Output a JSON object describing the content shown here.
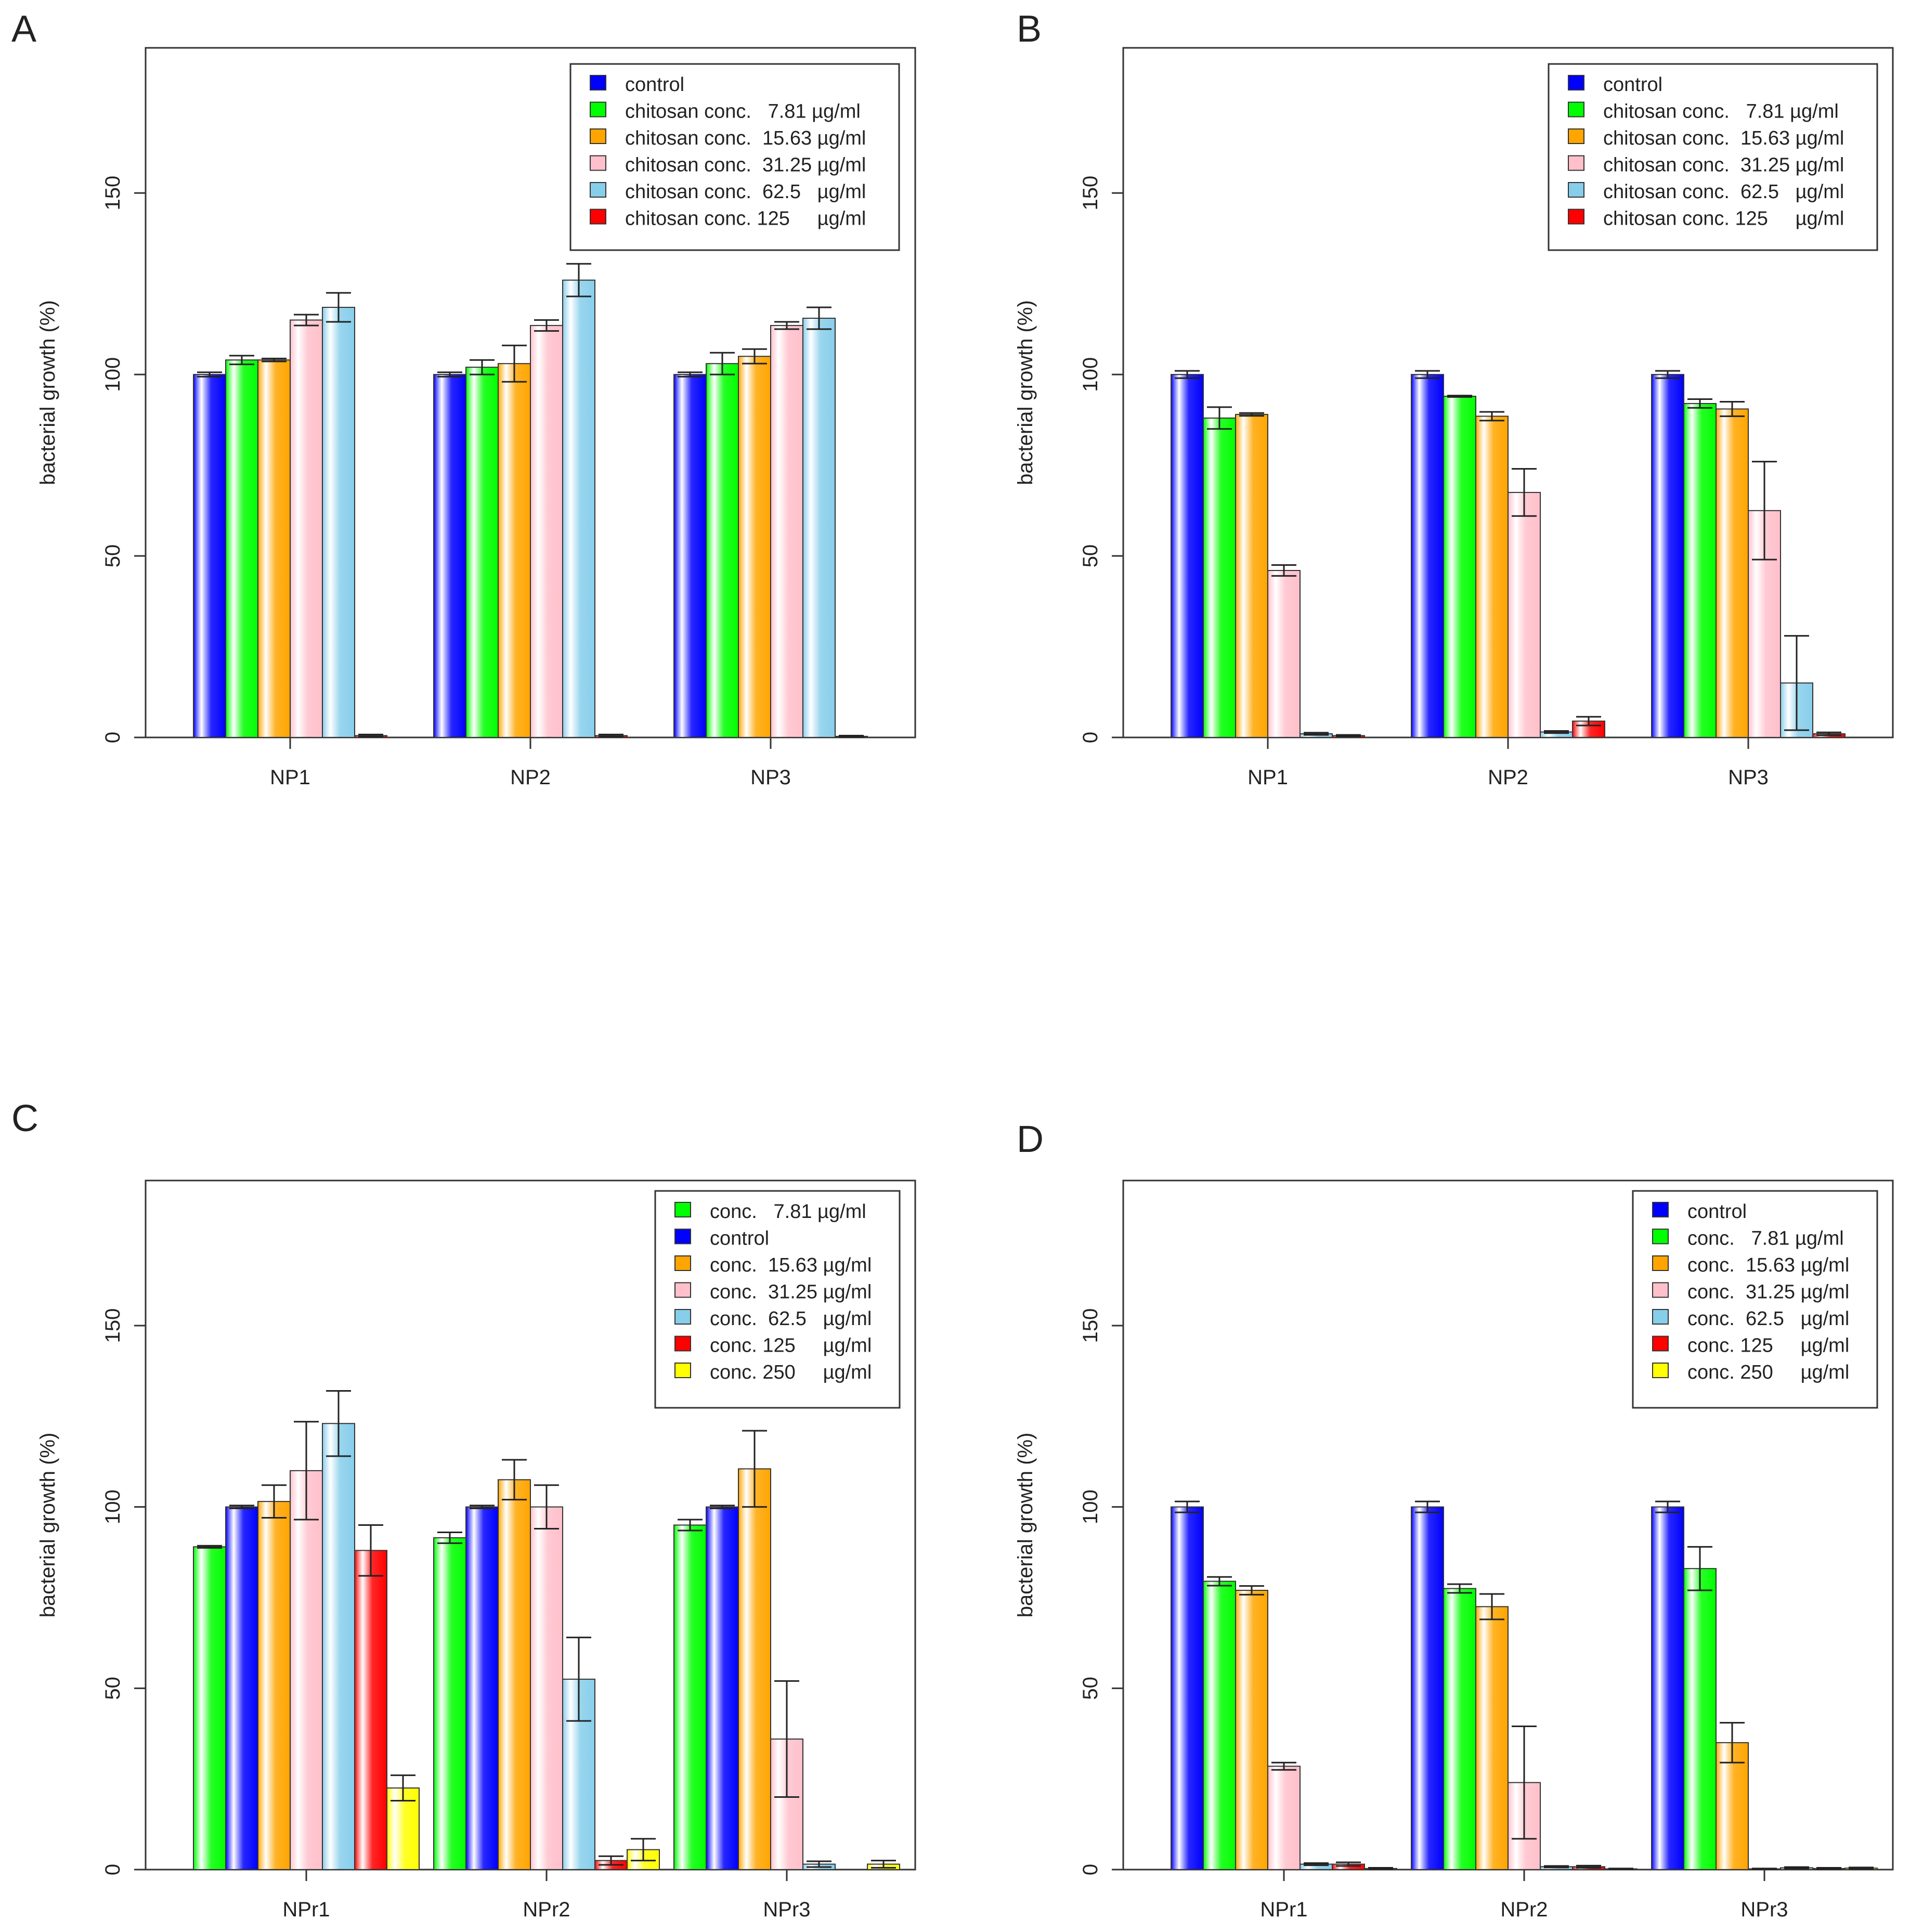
{
  "chart_data": [
    {
      "id": "A",
      "panel_label": "A",
      "type": "bar",
      "title": "",
      "xlabel": "",
      "ylabel": "bacterial growth (%)",
      "ylim": [
        0,
        190
      ],
      "yticks": [
        0,
        50,
        100,
        150
      ],
      "categories": [
        "NP1",
        "NP2",
        "NP3"
      ],
      "series": [
        {
          "name": "control",
          "color": "#0000ff",
          "values": [
            100,
            100,
            100
          ],
          "errors": [
            0.6,
            0.6,
            0.6
          ]
        },
        {
          "name": "chitosan conc.   7.81 µg/ml",
          "color": "#00ff00",
          "values": [
            104,
            102,
            103
          ],
          "errors": [
            1.2,
            2.0,
            3.0
          ]
        },
        {
          "name": "chitosan conc.  15.63 µg/ml",
          "color": "#ffa500",
          "values": [
            104,
            103,
            105
          ],
          "errors": [
            0.4,
            5.0,
            2.0
          ]
        },
        {
          "name": "chitosan conc.  31.25 µg/ml",
          "color": "#ffc0cb",
          "values": [
            115,
            113.5,
            113.5
          ],
          "errors": [
            1.5,
            1.5,
            1.0
          ]
        },
        {
          "name": "chitosan conc.  62.5   µg/ml",
          "color": "#87ceeb",
          "values": [
            118.5,
            126,
            115.5
          ],
          "errors": [
            4.0,
            4.5,
            3.0
          ]
        },
        {
          "name": "chitosan conc. 125     µg/ml",
          "color": "#ff0000",
          "values": [
            0.5,
            0.5,
            0.3
          ],
          "errors": [
            0.3,
            0.3,
            0.2
          ]
        }
      ]
    },
    {
      "id": "B",
      "panel_label": "B",
      "type": "bar",
      "title": "",
      "xlabel": "",
      "ylabel": "bacterial growth (%)",
      "ylim": [
        0,
        190
      ],
      "yticks": [
        0,
        50,
        100,
        150
      ],
      "categories": [
        "NP1",
        "NP2",
        "NP3"
      ],
      "series": [
        {
          "name": "control",
          "color": "#0000ff",
          "values": [
            100,
            100,
            100
          ],
          "errors": [
            1.0,
            1.0,
            1.0
          ]
        },
        {
          "name": "chitosan conc.   7.81 µg/ml",
          "color": "#00ff00",
          "values": [
            88,
            94,
            92
          ],
          "errors": [
            3.0,
            0.2,
            1.2
          ]
        },
        {
          "name": "chitosan conc.  15.63 µg/ml",
          "color": "#ffa500",
          "values": [
            89,
            88.5,
            90.5
          ],
          "errors": [
            0.4,
            1.2,
            2.0
          ]
        },
        {
          "name": "chitosan conc.  31.25 µg/ml",
          "color": "#ffc0cb",
          "values": [
            46,
            67.5,
            62.5
          ],
          "errors": [
            1.5,
            6.5,
            13.5
          ]
        },
        {
          "name": "chitosan conc.  62.5   µg/ml",
          "color": "#87ceeb",
          "values": [
            1,
            1.5,
            15
          ],
          "errors": [
            0.3,
            0.3,
            13.0
          ]
        },
        {
          "name": "chitosan conc. 125     µg/ml",
          "color": "#ff0000",
          "values": [
            0.5,
            4.5,
            1
          ],
          "errors": [
            0.2,
            1.2,
            0.4
          ]
        }
      ]
    },
    {
      "id": "C",
      "panel_label": "C",
      "type": "bar",
      "title": "",
      "xlabel": "",
      "ylabel": "bacterial growth (%)",
      "ylim": [
        0,
        190
      ],
      "yticks": [
        0,
        50,
        100,
        150
      ],
      "categories": [
        "NPr1",
        "NPr2",
        "NPr3"
      ],
      "series": [
        {
          "name": "conc.   7.81 µg/ml",
          "color": "#00ff00",
          "values": [
            89,
            91.5,
            95
          ],
          "errors": [
            0.3,
            1.5,
            1.5
          ]
        },
        {
          "name": "control",
          "color": "#0000ff",
          "values": [
            100,
            100,
            100
          ],
          "errors": [
            0.4,
            0.4,
            0.4
          ]
        },
        {
          "name": "conc.  15.63 µg/ml",
          "color": "#ffa500",
          "values": [
            101.5,
            107.5,
            110.5
          ],
          "errors": [
            4.5,
            5.5,
            10.5
          ]
        },
        {
          "name": "conc.  31.25 µg/ml",
          "color": "#ffc0cb",
          "values": [
            110,
            100,
            36
          ],
          "errors": [
            13.5,
            6.0,
            16.0
          ]
        },
        {
          "name": "conc.  62.5   µg/ml",
          "color": "#87ceeb",
          "values": [
            123,
            52.5,
            1.5
          ],
          "errors": [
            9.0,
            11.5,
            0.8
          ]
        },
        {
          "name": "conc. 125     µg/ml",
          "color": "#ff0000",
          "values": [
            88,
            2.5,
            0
          ],
          "errors": [
            7.0,
            1.2,
            0
          ]
        },
        {
          "name": "conc. 250     µg/ml",
          "color": "#ffff00",
          "values": [
            22.5,
            5.5,
            1.5
          ],
          "errors": [
            3.5,
            3.0,
            1.0
          ]
        }
      ]
    },
    {
      "id": "D",
      "panel_label": "D",
      "type": "bar",
      "title": "",
      "xlabel": "",
      "ylabel": "bacterial growth (%)",
      "ylim": [
        0,
        190
      ],
      "yticks": [
        0,
        50,
        100,
        150
      ],
      "categories": [
        "NPr1",
        "NPr2",
        "NPr3"
      ],
      "series": [
        {
          "name": "control",
          "color": "#0000ff",
          "values": [
            100,
            100,
            100
          ],
          "errors": [
            1.5,
            1.5,
            1.5
          ]
        },
        {
          "name": "conc.   7.81 µg/ml",
          "color": "#00ff00",
          "values": [
            79.5,
            77.5,
            83
          ],
          "errors": [
            1.2,
            1.2,
            6.0
          ]
        },
        {
          "name": "conc.  15.63 µg/ml",
          "color": "#ffa500",
          "values": [
            77,
            72.5,
            35
          ],
          "errors": [
            1.2,
            3.5,
            5.5
          ]
        },
        {
          "name": "conc.  31.25 µg/ml",
          "color": "#ffc0cb",
          "values": [
            28.5,
            24,
            0.2
          ],
          "errors": [
            1.0,
            15.5,
            0.1
          ]
        },
        {
          "name": "conc.  62.5   µg/ml",
          "color": "#87ceeb",
          "values": [
            1.5,
            0.8,
            0.5
          ],
          "errors": [
            0.3,
            0.2,
            0.2
          ]
        },
        {
          "name": "conc. 125     µg/ml",
          "color": "#ff0000",
          "values": [
            1.5,
            0.8,
            0.3
          ],
          "errors": [
            0.5,
            0.3,
            0.2
          ]
        },
        {
          "name": "conc. 250     µg/ml",
          "color": "#ffff00",
          "values": [
            0.3,
            0.2,
            0.4
          ],
          "errors": [
            0.2,
            0.1,
            0.2
          ]
        }
      ]
    }
  ]
}
